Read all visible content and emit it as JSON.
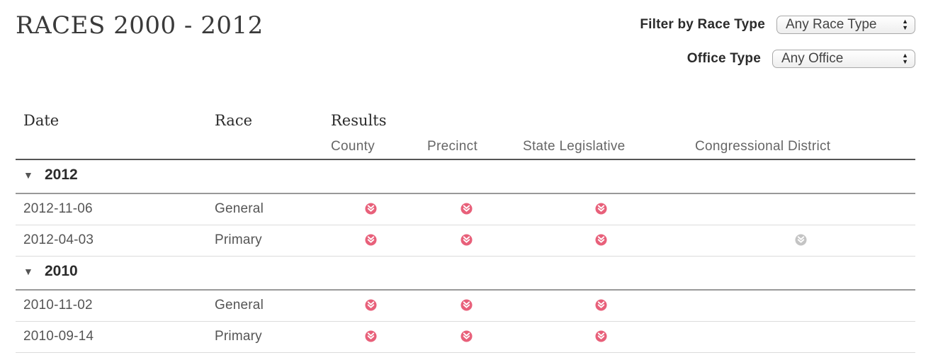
{
  "header": {
    "title": "RACES 2000 - 2012"
  },
  "filters": {
    "race_type": {
      "label": "Filter by Race Type",
      "selected": "Any Race Type"
    },
    "office_type": {
      "label": "Office Type",
      "selected": "Any Office"
    }
  },
  "table": {
    "columns": {
      "date": "Date",
      "race": "Race",
      "results": "Results"
    },
    "result_columns": [
      "County",
      "Precinct",
      "State Legislative",
      "Congressional District"
    ],
    "groups": [
      {
        "year": "2012",
        "rows": [
          {
            "date": "2012-11-06",
            "race": "General",
            "results": {
              "county": "available",
              "precinct": "available",
              "state_legislative": "available",
              "congressional_district": "none"
            }
          },
          {
            "date": "2012-04-03",
            "race": "Primary",
            "results": {
              "county": "available",
              "precinct": "available",
              "state_legislative": "available",
              "congressional_district": "unavailable"
            }
          }
        ]
      },
      {
        "year": "2010",
        "rows": [
          {
            "date": "2010-11-02",
            "race": "General",
            "results": {
              "county": "available",
              "precinct": "available",
              "state_legislative": "available",
              "congressional_district": "none"
            }
          },
          {
            "date": "2010-09-14",
            "race": "Primary",
            "results": {
              "county": "available",
              "precinct": "available",
              "state_legislative": "available",
              "congressional_district": "none"
            }
          }
        ]
      }
    ]
  },
  "icons": {
    "group_toggle": "caret-down-icon",
    "result_download": "chevron-down-circle-icon"
  },
  "colors": {
    "available": "#e8607a",
    "unavailable": "#c4c4c4"
  }
}
